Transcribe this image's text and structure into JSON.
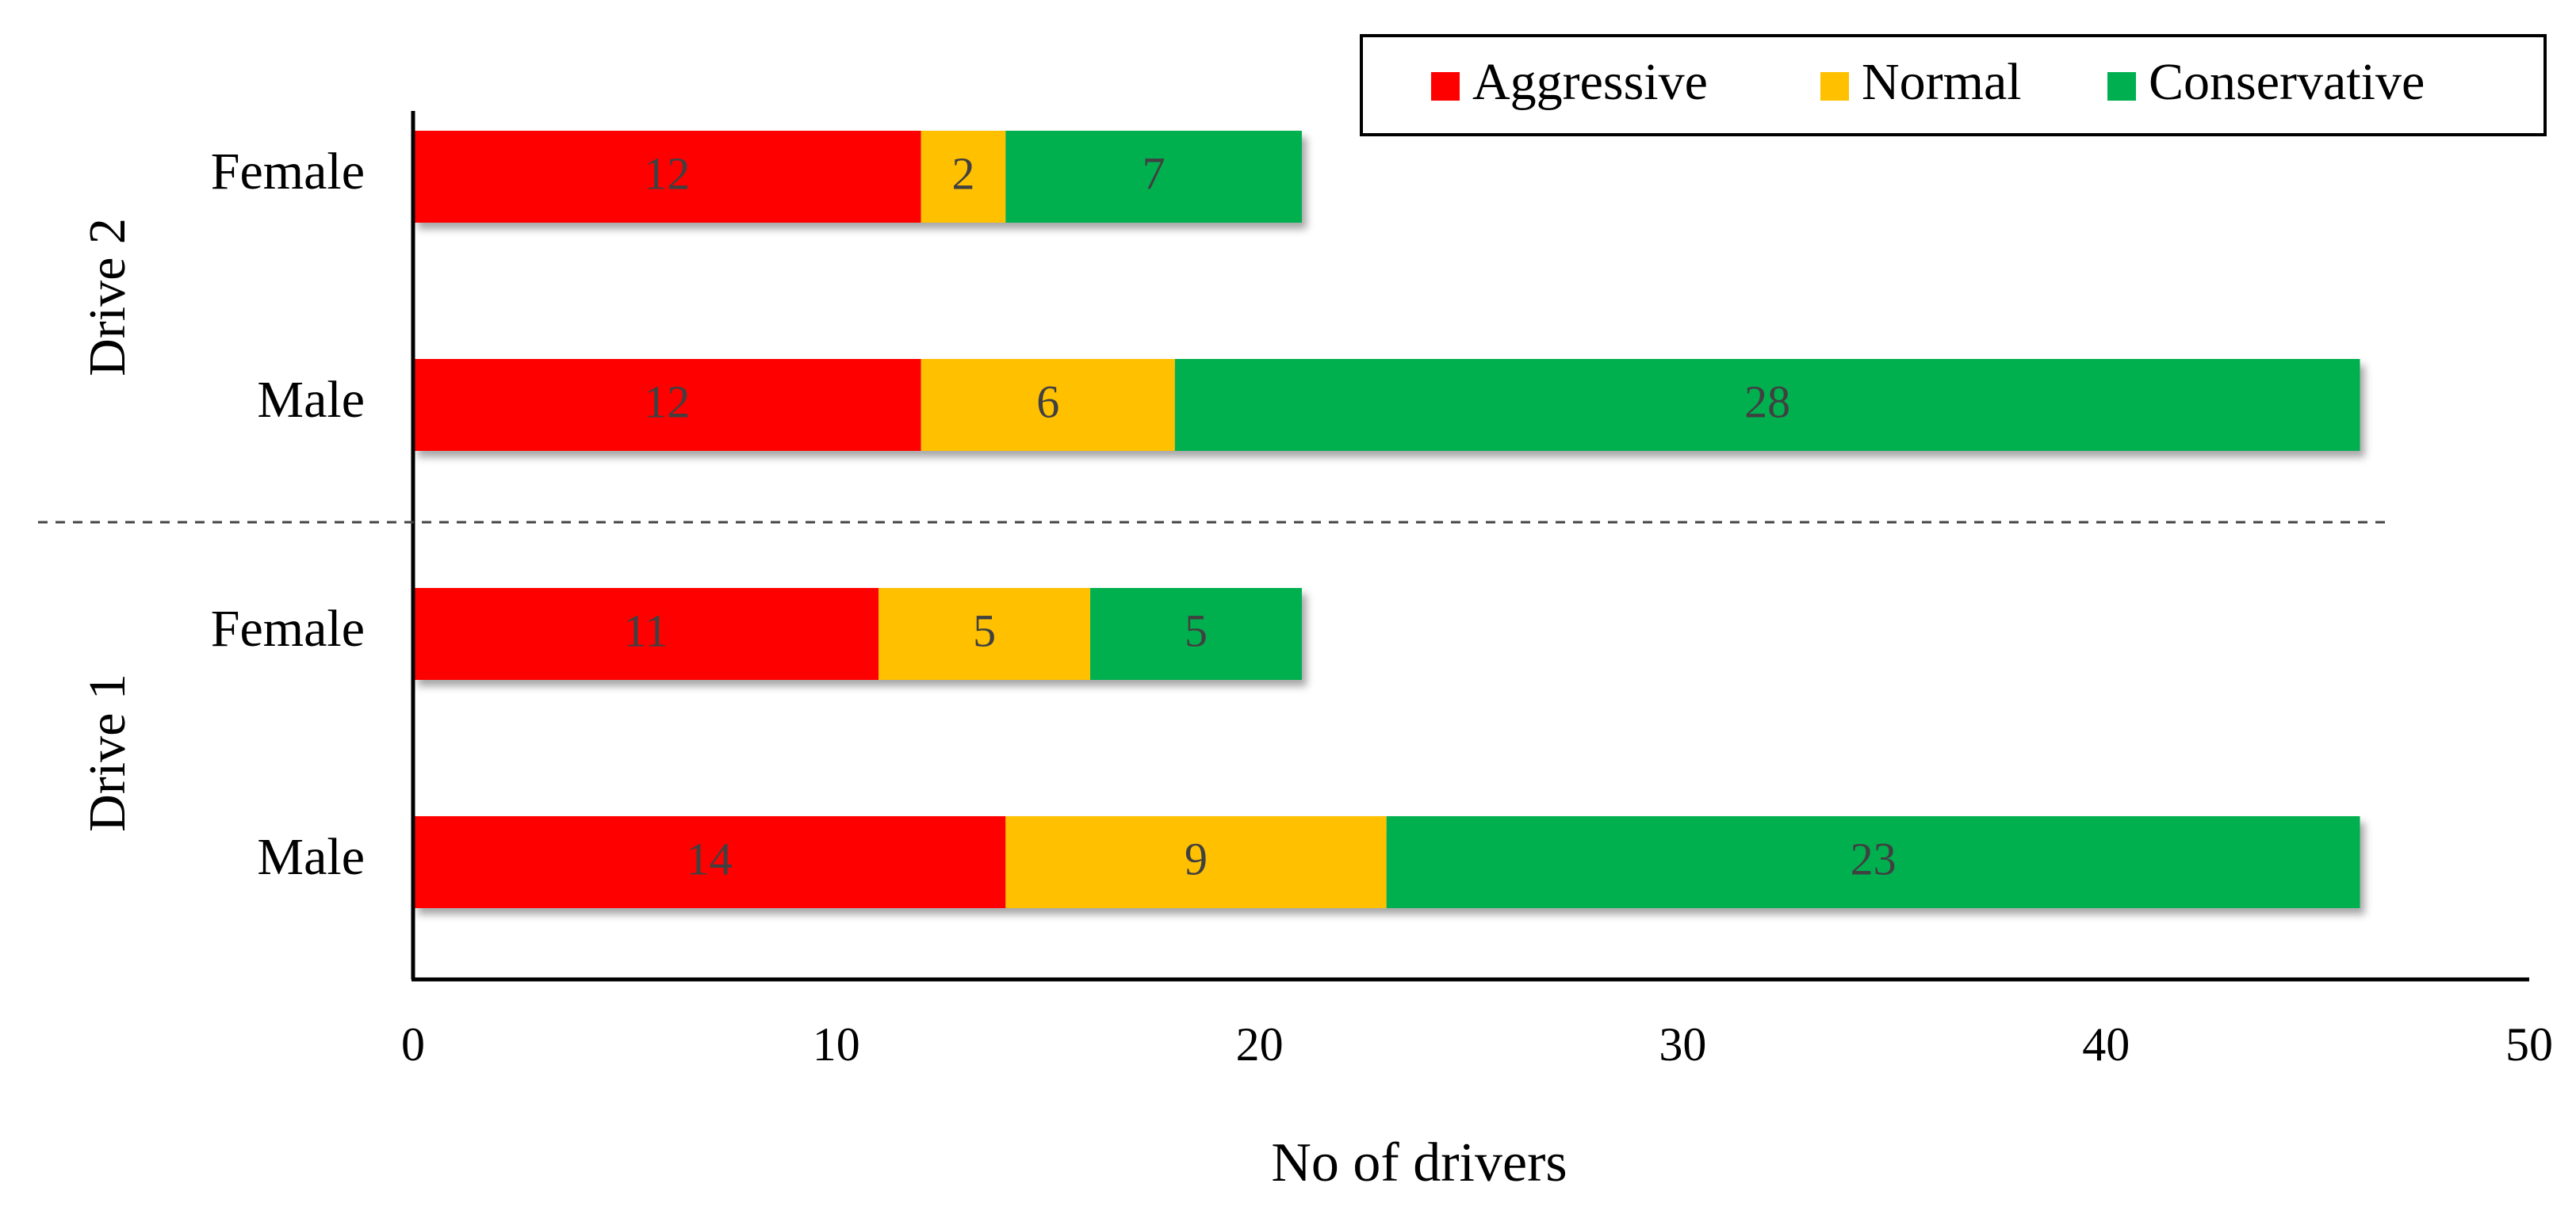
{
  "chart_data": {
    "type": "bar",
    "orientation": "horizontal",
    "stacked": true,
    "groups": [
      {
        "label": "Drive 2",
        "categories": [
          {
            "label": "Female",
            "values": [
              12,
              2,
              7
            ]
          },
          {
            "label": "Male",
            "values": [
              12,
              6,
              28
            ]
          }
        ]
      },
      {
        "label": "Drive 1",
        "categories": [
          {
            "label": "Female",
            "values": [
              11,
              5,
              5
            ]
          },
          {
            "label": "Male",
            "values": [
              14,
              9,
              23
            ]
          }
        ]
      }
    ],
    "series": [
      {
        "name": "Aggressive",
        "color": "#ff0000"
      },
      {
        "name": "Normal",
        "color": "#ffc000"
      },
      {
        "name": "Conservative",
        "color": "#00b050"
      }
    ],
    "title": "",
    "xlabel": "No of drivers",
    "ylabel": "",
    "xlim": [
      0,
      50
    ],
    "xticks": [
      0,
      10,
      20,
      30,
      40,
      50
    ],
    "legend_position": "top-right",
    "grid": false
  }
}
